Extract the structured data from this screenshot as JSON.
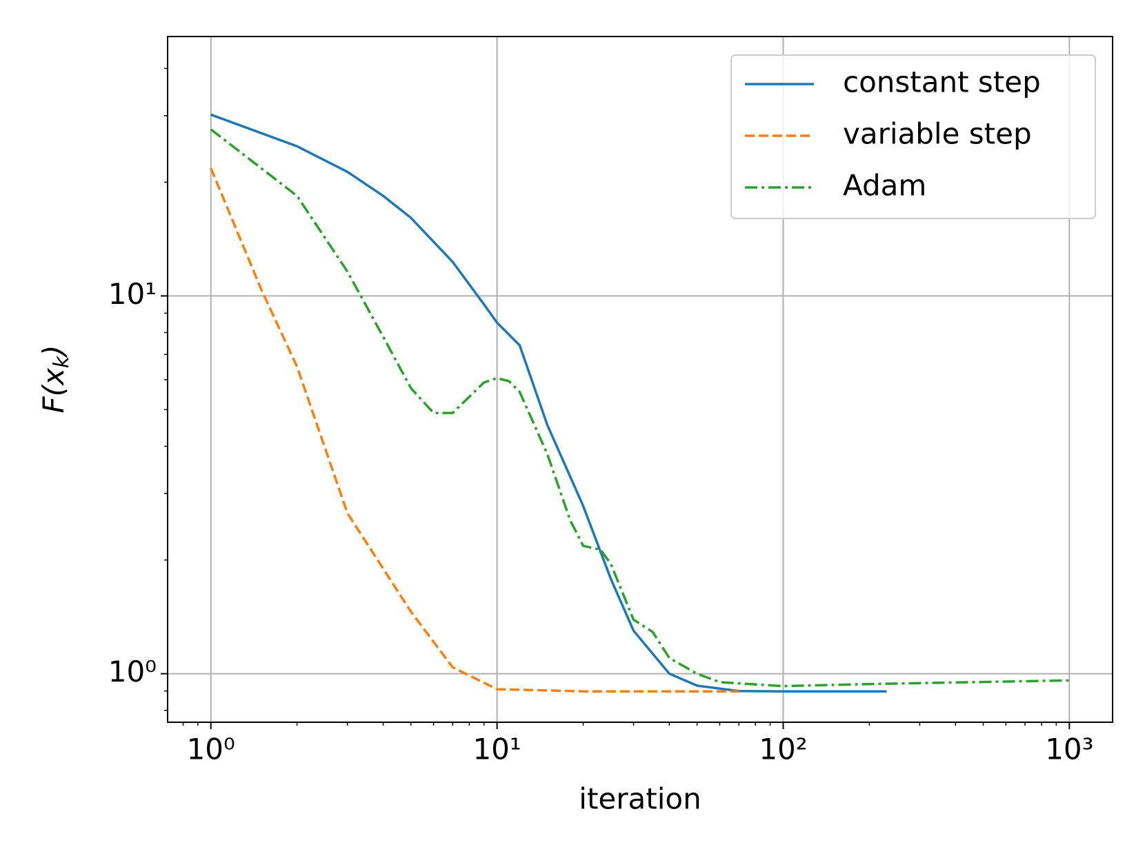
{
  "chart_data": {
    "type": "line",
    "xlabel": "iteration",
    "ylabel": [
      "F(x",
      "k",
      ")"
    ],
    "xscale": "log",
    "yscale": "log",
    "grid": true,
    "legend": "upper right",
    "xlim": [
      0.706,
      1416
    ],
    "ylim": [
      0.744,
      48.6
    ],
    "xticks": [
      {
        "value": 1,
        "label": "10⁰"
      },
      {
        "value": 10,
        "label": "10¹"
      },
      {
        "value": 100,
        "label": "10²"
      },
      {
        "value": 1000,
        "label": "10³"
      }
    ],
    "yticks": [
      {
        "value": 1,
        "label": "10⁰"
      },
      {
        "value": 10,
        "label": "10¹"
      }
    ],
    "xminorticks": [
      0.8,
      0.9,
      2,
      3,
      4,
      5,
      6,
      7,
      8,
      9,
      20,
      30,
      40,
      50,
      60,
      70,
      80,
      90,
      200,
      300,
      400,
      500,
      600,
      700,
      800,
      900
    ],
    "yminorticks": [
      0.8,
      0.9,
      2,
      3,
      4,
      5,
      6,
      7,
      8,
      9,
      20,
      30,
      40
    ],
    "series": [
      {
        "name": "constant step",
        "color": "#1f77b4",
        "linestyle": "solid",
        "x": [
          1,
          2,
          3,
          4,
          5,
          7,
          9,
          10,
          12,
          15,
          20,
          25,
          30,
          40,
          50,
          70,
          100,
          230
        ],
        "values": [
          30.2,
          24.9,
          21.3,
          18.4,
          16.1,
          12.3,
          9.5,
          8.5,
          7.4,
          4.55,
          2.78,
          1.78,
          1.3,
          1.0,
          0.93,
          0.9,
          0.898,
          0.898
        ]
      },
      {
        "name": "variable step",
        "color": "#ff7f0e",
        "linestyle": "dashed",
        "x": [
          1,
          1.5,
          2,
          3,
          5,
          7,
          10,
          20,
          70
        ],
        "values": [
          21.8,
          10.4,
          6.5,
          2.66,
          1.46,
          1.04,
          0.91,
          0.898,
          0.898
        ]
      },
      {
        "name": "Adam",
        "color": "#2ca02c",
        "linestyle": "dashdot",
        "x": [
          1,
          2,
          3,
          4,
          5,
          6,
          7,
          9,
          10,
          11,
          12,
          15,
          18,
          20,
          23,
          25,
          30,
          35,
          40,
          50,
          60,
          100,
          200,
          1000
        ],
        "values": [
          27.6,
          18.4,
          11.6,
          7.8,
          5.7,
          4.9,
          4.9,
          5.9,
          6.06,
          5.95,
          5.57,
          3.81,
          2.55,
          2.18,
          2.13,
          1.95,
          1.39,
          1.29,
          1.1,
          1.0,
          0.95,
          0.927,
          0.939,
          0.96
        ]
      }
    ]
  }
}
